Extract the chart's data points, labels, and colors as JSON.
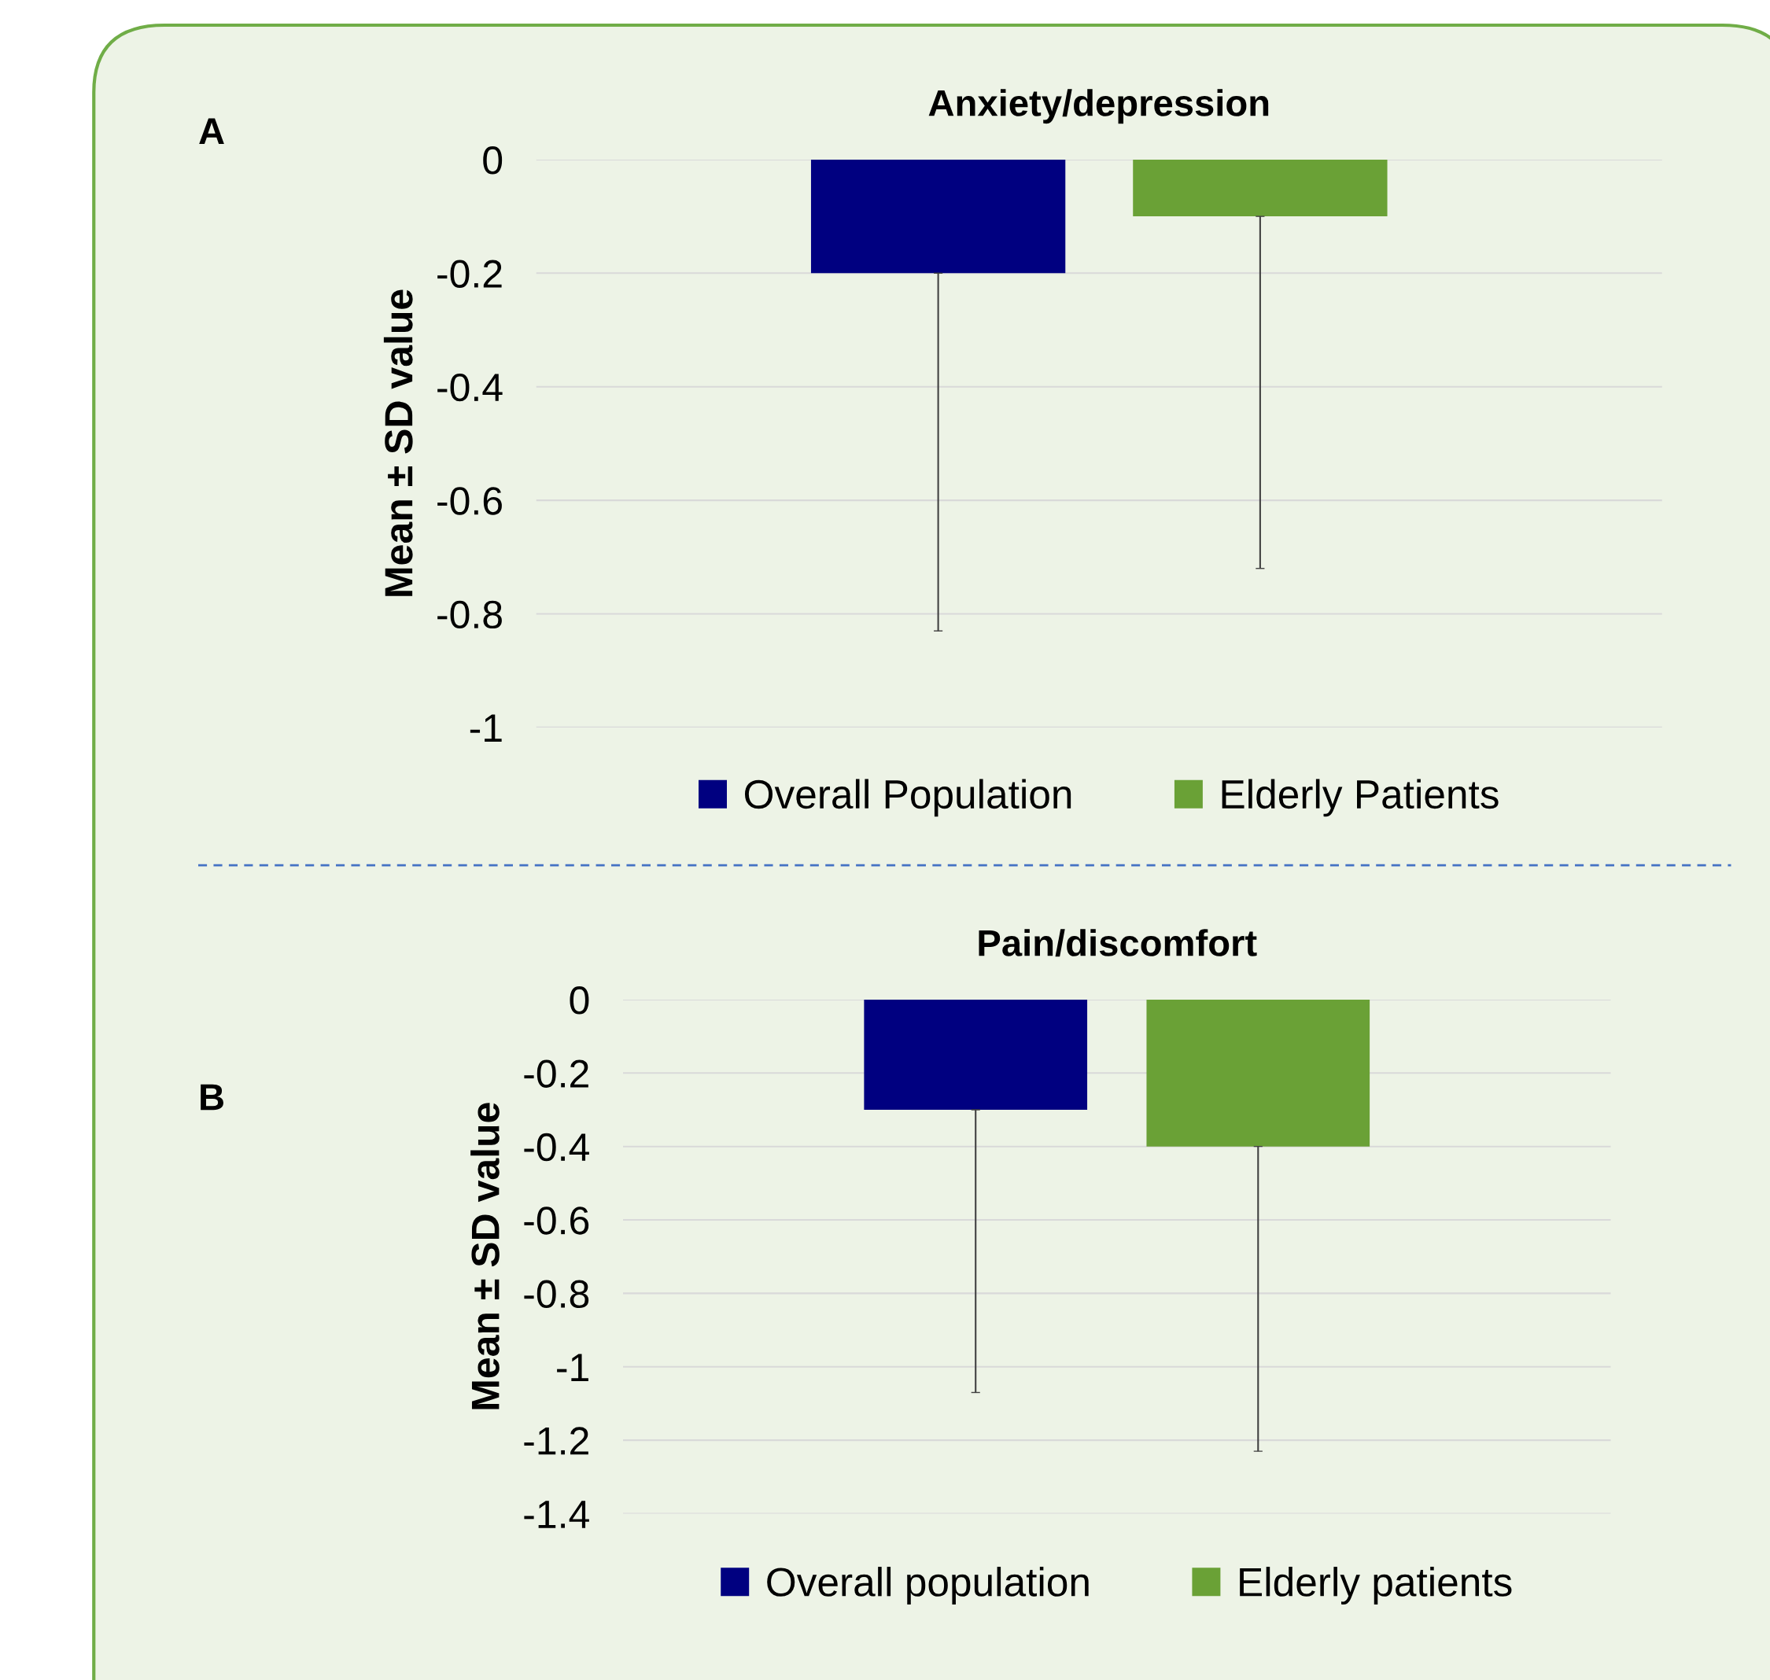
{
  "chart_data": [
    {
      "type": "bar",
      "title": "Anxiety/depression",
      "ylabel": "Mean ± SD value",
      "annotations": [
        "A"
      ],
      "categories": [
        null
      ],
      "series": [
        {
          "name": "Overall Population",
          "color": "#000080",
          "values": [
            -0.2
          ],
          "errors": [
            [
              -0.83,
              -0.2
            ]
          ]
        },
        {
          "name": "Elderly Patients",
          "color": "#6aa136",
          "values": [
            -0.1
          ],
          "errors": [
            [
              -0.72,
              -0.1
            ]
          ]
        }
      ],
      "ylim": [
        -1,
        0
      ],
      "yticks": [
        0,
        -0.2,
        -0.4,
        -0.6,
        -0.8,
        -1
      ],
      "grid": "y",
      "legend": "bottom"
    },
    {
      "type": "bar",
      "title": "Pain/discomfort",
      "ylabel": "Mean ± SD value",
      "annotations": [
        "B"
      ],
      "categories": [
        null
      ],
      "series": [
        {
          "name": "Overall population",
          "color": "#000080",
          "values": [
            -0.3
          ],
          "errors": [
            [
              -1.07,
              -0.3
            ]
          ]
        },
        {
          "name": "Elderly patients",
          "color": "#6aa136",
          "values": [
            -0.4
          ],
          "errors": [
            [
              -1.23,
              -0.4
            ]
          ]
        }
      ],
      "ylim": [
        -1.4,
        0
      ],
      "yticks": [
        0,
        -0.2,
        -0.4,
        -0.6,
        -0.8,
        -1,
        -1.2,
        -1.4
      ],
      "grid": "y",
      "legend": "bottom"
    }
  ]
}
